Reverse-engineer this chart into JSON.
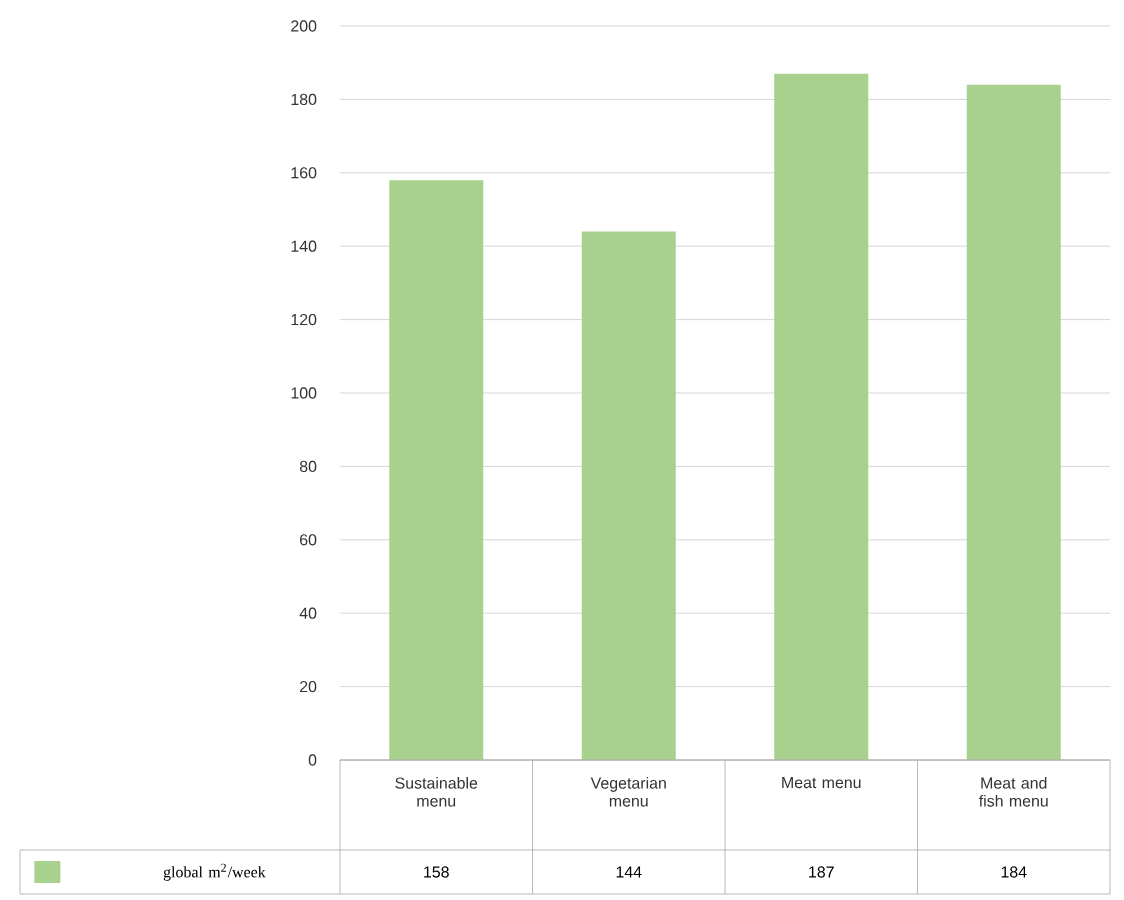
{
  "chart_data": {
    "type": "bar",
    "categories": [
      "Sustainable menu",
      "Vegetarian menu",
      "Meat menu",
      "Meat and fish menu"
    ],
    "series": [
      {
        "name": "global m$^{2}$/week",
        "color": "#a9d18e",
        "values": [
          158,
          144,
          187,
          184
        ]
      }
    ],
    "ylim": [
      0,
      200
    ],
    "yticks": [
      0,
      20,
      40,
      60,
      80,
      100,
      120,
      140,
      160,
      180,
      200
    ],
    "grid": "y",
    "legend": "bottom",
    "data_labels": true
  }
}
